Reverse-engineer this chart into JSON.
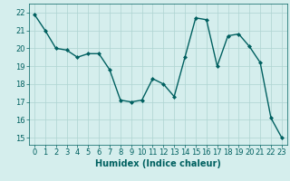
{
  "x": [
    0,
    1,
    2,
    3,
    4,
    5,
    6,
    7,
    8,
    9,
    10,
    11,
    12,
    13,
    14,
    15,
    16,
    17,
    18,
    19,
    20,
    21,
    22,
    23
  ],
  "y": [
    21.9,
    21.0,
    20.0,
    19.9,
    19.5,
    19.7,
    19.7,
    18.8,
    17.1,
    17.0,
    17.1,
    18.3,
    18.0,
    17.3,
    19.5,
    21.7,
    21.6,
    19.0,
    20.7,
    20.8,
    20.1,
    19.2,
    16.1,
    15.0
  ],
  "line_color": "#006060",
  "marker": "D",
  "markersize": 2.0,
  "linewidth": 1.0,
  "xlabel": "Humidex (Indice chaleur)",
  "xlim": [
    -0.5,
    23.5
  ],
  "ylim": [
    14.6,
    22.5
  ],
  "yticks": [
    15,
    16,
    17,
    18,
    19,
    20,
    21,
    22
  ],
  "xticks": [
    0,
    1,
    2,
    3,
    4,
    5,
    6,
    7,
    8,
    9,
    10,
    11,
    12,
    13,
    14,
    15,
    16,
    17,
    18,
    19,
    20,
    21,
    22,
    23
  ],
  "bg_color": "#d5eeed",
  "grid_color": "#aed4d1",
  "tick_color": "#006060",
  "xlabel_fontsize": 7,
  "tick_fontsize": 6
}
